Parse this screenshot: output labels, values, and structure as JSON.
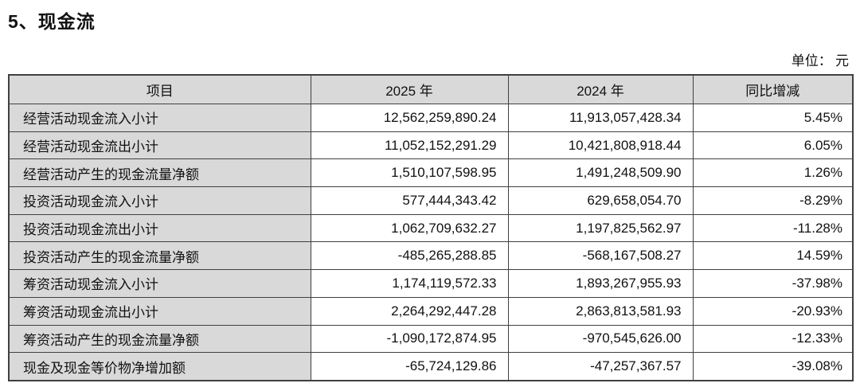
{
  "page": {
    "title": "5、现金流",
    "unit_label": "单位： 元"
  },
  "colors": {
    "header_bg": "#d9d9d9",
    "border": "#404040",
    "text": "#111111"
  },
  "table": {
    "headers": [
      "项目",
      "2025 年",
      "2024 年",
      "同比增减"
    ],
    "rows": [
      {
        "item": "经营活动现金流入小计",
        "y2025": "12,562,259,890.24",
        "y2024": "11,913,057,428.34",
        "change": "5.45%"
      },
      {
        "item": "经营活动现金流出小计",
        "y2025": "11,052,152,291.29",
        "y2024": "10,421,808,918.44",
        "change": "6.05%"
      },
      {
        "item": "经营活动产生的现金流量净额",
        "y2025": "1,510,107,598.95",
        "y2024": "1,491,248,509.90",
        "change": "1.26%"
      },
      {
        "item": "投资活动现金流入小计",
        "y2025": "577,444,343.42",
        "y2024": "629,658,054.70",
        "change": "-8.29%"
      },
      {
        "item": "投资活动现金流出小计",
        "y2025": "1,062,709,632.27",
        "y2024": "1,197,825,562.97",
        "change": "-11.28%"
      },
      {
        "item": "投资活动产生的现金流量净额",
        "y2025": "-485,265,288.85",
        "y2024": "-568,167,508.27",
        "change": "14.59%"
      },
      {
        "item": "筹资活动现金流入小计",
        "y2025": "1,174,119,572.33",
        "y2024": "1,893,267,955.93",
        "change": "-37.98%"
      },
      {
        "item": "筹资活动现金流出小计",
        "y2025": "2,264,292,447.28",
        "y2024": "2,863,813,581.93",
        "change": "-20.93%"
      },
      {
        "item": "筹资活动产生的现金流量净额",
        "y2025": "-1,090,172,874.95",
        "y2024": "-970,545,626.00",
        "change": "-12.33%"
      },
      {
        "item": "现金及现金等价物净增加额",
        "y2025": "-65,724,129.86",
        "y2024": "-47,257,367.57",
        "change": "-39.08%"
      }
    ]
  }
}
